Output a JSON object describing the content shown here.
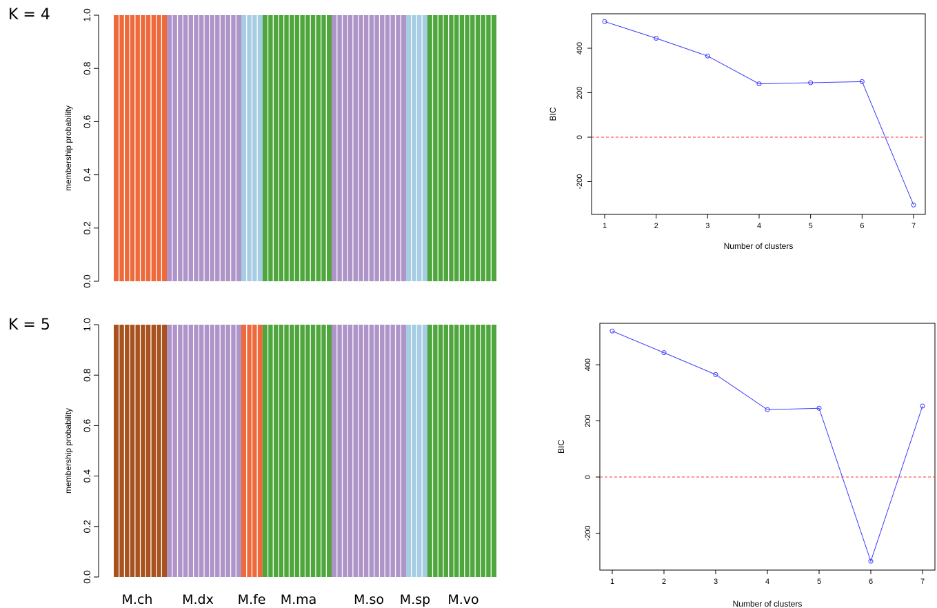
{
  "panels": {
    "k4_label": "K = 4",
    "k5_label": "K = 5"
  },
  "populations": [
    "M.ch",
    "M.dx",
    "M.fe",
    "M.ma",
    "M.so",
    "M.sp",
    "M.vo"
  ],
  "chart_data": [
    {
      "type": "bar",
      "subtype": "stacked-membership",
      "panel": "K = 4",
      "ylabel": "membership probability",
      "xlabel": "",
      "ylim": [
        0,
        1
      ],
      "yticks": [
        "0.0",
        "0.2",
        "0.4",
        "0.6",
        "0.8",
        "1.0"
      ],
      "groups": [
        {
          "population": "M.ch",
          "individuals": 10,
          "cluster_color": "#ee6a3c",
          "membership": 1.0
        },
        {
          "population": "M.dx",
          "individuals": 14,
          "cluster_color": "#ae94c8",
          "membership": 1.0
        },
        {
          "population": "M.fe",
          "individuals": 4,
          "cluster_color": "#a6cde3",
          "membership": 1.0
        },
        {
          "population": "M.ma",
          "individuals": 13,
          "cluster_color": "#4ea63c",
          "membership": 1.0
        },
        {
          "population": "M.so",
          "individuals": 14,
          "cluster_color": "#ae94c8",
          "membership": 1.0
        },
        {
          "population": "M.sp",
          "individuals": 4,
          "cluster_color": "#a6cde3",
          "membership": 1.0
        },
        {
          "population": "M.vo",
          "individuals": 13,
          "cluster_color": "#4ea63c",
          "membership": 1.0
        }
      ]
    },
    {
      "type": "line",
      "panel": "K = 4",
      "xlabel": "Number of clusters",
      "ylabel": "BIC",
      "x": [
        1,
        2,
        3,
        4,
        5,
        6,
        7
      ],
      "y": [
        520,
        445,
        365,
        240,
        245,
        250,
        -305
      ],
      "xlim": [
        1,
        7
      ],
      "ylim": [
        -330,
        540
      ],
      "yticks": [
        -200,
        0,
        200,
        400
      ],
      "series_color": "#3b3bff",
      "reference_line": {
        "y": 0,
        "color": "#ff3030",
        "style": "dashed"
      }
    },
    {
      "type": "bar",
      "subtype": "stacked-membership",
      "panel": "K = 5",
      "ylabel": "membership probability",
      "xlabel": "",
      "ylim": [
        0,
        1
      ],
      "yticks": [
        "0.0",
        "0.2",
        "0.4",
        "0.6",
        "0.8",
        "1.0"
      ],
      "groups": [
        {
          "population": "M.ch",
          "individuals": 10,
          "cluster_color": "#a8521f",
          "membership": 1.0
        },
        {
          "population": "M.dx",
          "individuals": 14,
          "cluster_color": "#ae94c8",
          "membership": 1.0
        },
        {
          "population": "M.fe",
          "individuals": 4,
          "cluster_color": "#ee6a3c",
          "membership": 1.0
        },
        {
          "population": "M.ma",
          "individuals": 13,
          "cluster_color": "#4ea63c",
          "membership": 1.0
        },
        {
          "population": "M.so",
          "individuals": 14,
          "cluster_color": "#ae94c8",
          "membership": 1.0
        },
        {
          "population": "M.sp",
          "individuals": 4,
          "cluster_color": "#a6cde3",
          "membership": 1.0
        },
        {
          "population": "M.vo",
          "individuals": 13,
          "cluster_color": "#4ea63c",
          "membership": 1.0
        }
      ]
    },
    {
      "type": "line",
      "panel": "K = 5",
      "xlabel": "Number of clusters",
      "ylabel": "BIC",
      "x": [
        1,
        2,
        3,
        4,
        5,
        6,
        7
      ],
      "y": [
        520,
        443,
        365,
        240,
        245,
        -300,
        253
      ],
      "xlim": [
        1,
        7
      ],
      "ylim": [
        -330,
        540
      ],
      "yticks": [
        -200,
        0,
        200,
        400
      ],
      "series_color": "#3b3bff",
      "reference_line": {
        "y": 0,
        "color": "#ff3030",
        "style": "dashed"
      }
    }
  ]
}
